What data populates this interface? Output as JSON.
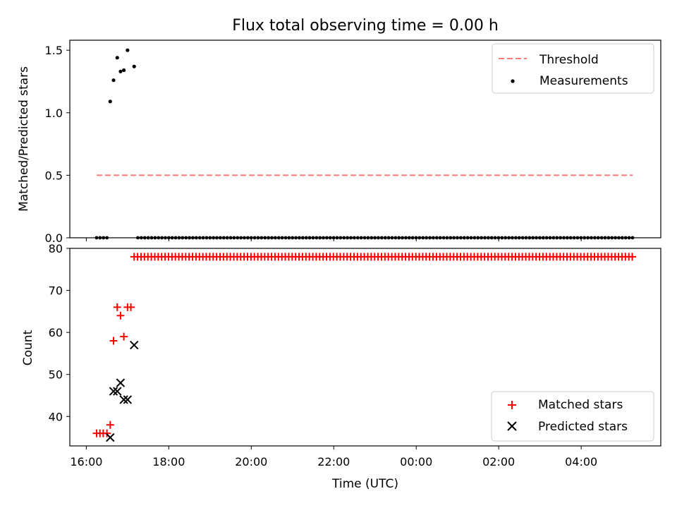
{
  "chart_data": [
    {
      "type": "scatter",
      "title": "Flux total observing time = 0.00 h",
      "xlabel": "",
      "ylabel": "Matched/Predicted stars",
      "x_ticks": [
        "16:00",
        "18:00",
        "20:00",
        "22:00",
        "00:00",
        "02:00",
        "04:00"
      ],
      "y_ticks": [
        "0.0",
        "0.5",
        "1.0",
        "1.5"
      ],
      "xlim_hours": [
        15.6,
        29.93
      ],
      "ylim": [
        0.0,
        1.58
      ],
      "legend": {
        "position": "top-right",
        "entries": [
          "Threshold",
          "Measurements"
        ]
      },
      "threshold": {
        "name": "Threshold",
        "value": 0.5,
        "x_start_h": 16.25,
        "x_end_h": 29.25,
        "color": "#ff7a7a",
        "style": "dashed"
      },
      "series": [
        {
          "name": "Measurements",
          "color": "#000000",
          "points": [
            {
              "x_h": 16.58,
              "y": 1.09
            },
            {
              "x_h": 16.66,
              "y": 1.26
            },
            {
              "x_h": 16.75,
              "y": 1.44
            },
            {
              "x_h": 16.83,
              "y": 1.33
            },
            {
              "x_h": 16.91,
              "y": 1.34
            },
            {
              "x_h": 17.0,
              "y": 1.5
            },
            {
              "x_h": 17.16,
              "y": 1.37
            }
          ],
          "zero_run": {
            "x_start_h": 16.25,
            "x_end_h": 16.5,
            "x2_start_h": 17.25,
            "x2_end_h": 29.25,
            "step_h": 0.0833,
            "y": 0
          }
        }
      ]
    },
    {
      "type": "scatter",
      "title": "",
      "xlabel": "Time (UTC)",
      "ylabel": "Count",
      "x_ticks": [
        "16:00",
        "18:00",
        "20:00",
        "22:00",
        "00:00",
        "02:00",
        "04:00"
      ],
      "y_ticks": [
        "40",
        "50",
        "60",
        "70",
        "80"
      ],
      "xlim_hours": [
        15.6,
        29.93
      ],
      "ylim": [
        33,
        80
      ],
      "legend": {
        "position": "bottom-right",
        "entries": [
          "Matched stars",
          "Predicted stars"
        ]
      },
      "series": [
        {
          "name": "Matched stars",
          "color": "#ff0000",
          "marker": "plus",
          "points": [
            {
              "x_h": 16.25,
              "y": 36
            },
            {
              "x_h": 16.33,
              "y": 36
            },
            {
              "x_h": 16.41,
              "y": 36
            },
            {
              "x_h": 16.5,
              "y": 36
            },
            {
              "x_h": 16.58,
              "y": 38
            },
            {
              "x_h": 16.66,
              "y": 58
            },
            {
              "x_h": 16.75,
              "y": 66
            },
            {
              "x_h": 16.83,
              "y": 64
            },
            {
              "x_h": 16.91,
              "y": 59
            },
            {
              "x_h": 17.0,
              "y": 66
            },
            {
              "x_h": 17.08,
              "y": 66
            }
          ],
          "constant_run": {
            "x_start_h": 17.16,
            "x_end_h": 29.25,
            "step_h": 0.0833,
            "y": 78
          }
        },
        {
          "name": "Predicted stars",
          "color": "#000000",
          "marker": "x",
          "points": [
            {
              "x_h": 16.58,
              "y": 35
            },
            {
              "x_h": 16.66,
              "y": 46
            },
            {
              "x_h": 16.75,
              "y": 46
            },
            {
              "x_h": 16.83,
              "y": 48
            },
            {
              "x_h": 16.91,
              "y": 44
            },
            {
              "x_h": 17.0,
              "y": 44
            },
            {
              "x_h": 17.16,
              "y": 57
            }
          ]
        }
      ]
    }
  ]
}
